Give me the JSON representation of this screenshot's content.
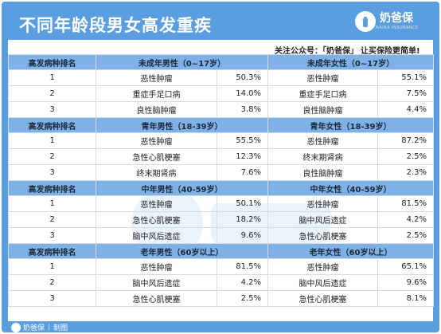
{
  "title": "不同年龄段男女高发重疾",
  "logo": {
    "name": "奶爸保",
    "sub": "NAIBA INSURANCE"
  },
  "follow_left": "关注公众号：「奶爸保」",
  "follow_right": "让买保险更简单!",
  "rank_header": "高发病种排名",
  "groups": [
    {
      "male_header": "未成年男性（0~17岁）",
      "female_header": "未成年女性（0~17岁）",
      "rows": [
        {
          "rank": "1",
          "m_name": "恶性肿瘤",
          "m_val": "50.3%",
          "f_name": "恶性肿瘤",
          "f_val": "55.1%"
        },
        {
          "rank": "2",
          "m_name": "重症手足口病",
          "m_val": "14.0%",
          "f_name": "重症手足口病",
          "f_val": "7.5%"
        },
        {
          "rank": "3",
          "m_name": "良性脑肿瘤",
          "m_val": "3.8%",
          "f_name": "良性脑肿瘤",
          "f_val": "4.4%"
        }
      ]
    },
    {
      "male_header": "青年男性（18-39岁）",
      "female_header": "青年女性（18-39岁）",
      "rows": [
        {
          "rank": "1",
          "m_name": "恶性肿瘤",
          "m_val": "55.5%",
          "f_name": "恶性肿瘤",
          "f_val": "87.2%"
        },
        {
          "rank": "2",
          "m_name": "急性心肌梗塞",
          "m_val": "12.3%",
          "f_name": "终末期肾病",
          "f_val": "2.5%"
        },
        {
          "rank": "3",
          "m_name": "终末期肾病",
          "m_val": "7.6%",
          "f_name": "良性脑肿瘤",
          "f_val": "2.3%"
        }
      ]
    },
    {
      "male_header": "中年男性（40-59岁）",
      "female_header": "中年女性（40-59岁）",
      "rows": [
        {
          "rank": "1",
          "m_name": "恶性肿瘤",
          "m_val": "50.1%",
          "f_name": "恶性肿瘤",
          "f_val": "81.5%"
        },
        {
          "rank": "2",
          "m_name": "急性心肌梗塞",
          "m_val": "18.2%",
          "f_name": "脑中风后遗症",
          "f_val": "4.2%"
        },
        {
          "rank": "3",
          "m_name": "脑中风后遗症",
          "m_val": "9.6%",
          "f_name": "急性心肌梗塞",
          "f_val": "2.5%"
        }
      ]
    },
    {
      "male_header": "老年男性（60岁以上）",
      "female_header": "老年女性（60岁以上）",
      "rows": [
        {
          "rank": "1",
          "m_name": "恶性肿瘤",
          "m_val": "81.5%",
          "f_name": "恶性肿瘤",
          "f_val": "65.1%"
        },
        {
          "rank": "2",
          "m_name": "脑中风后遗症",
          "m_val": "4.2%",
          "f_name": "脑中风后遗症",
          "f_val": "9.6%"
        },
        {
          "rank": "3",
          "m_name": "急性心肌梗塞",
          "m_val": "2.5%",
          "f_name": "急性心肌梗塞",
          "f_val": "8.1%"
        }
      ]
    }
  ],
  "footer": {
    "brand": "奶爸保",
    "label": "制图"
  },
  "colors": {
    "background": "#5b9ee0",
    "header_row": "#7fb0e6",
    "card": "#ffffff"
  },
  "icons": {
    "logo": "baby-bottle-icon",
    "footer": "baby-bottle-icon"
  }
}
